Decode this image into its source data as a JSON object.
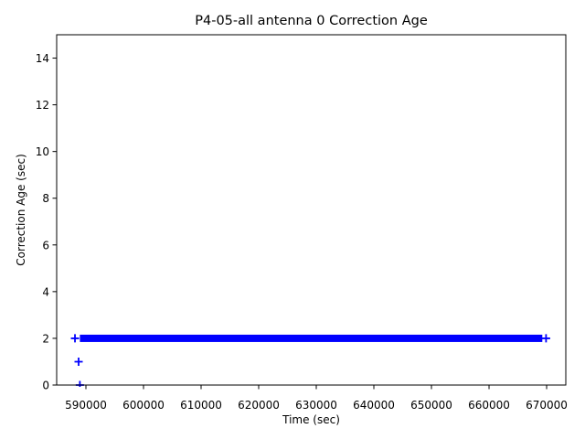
{
  "chart_data": {
    "type": "scatter",
    "title": "P4-05-all antenna 0 Correction Age",
    "xlabel": "Time (sec)",
    "ylabel": "Correction Age (sec)",
    "marker": "+",
    "marker_color": "#0000ff",
    "axis_color": "#000000",
    "background_color": "#ffffff",
    "grid": false,
    "legend": "none",
    "xlim": [
      584920,
      673330
    ],
    "ylim": [
      0,
      15
    ],
    "xticks": [
      590000,
      600000,
      610000,
      620000,
      630000,
      640000,
      650000,
      660000,
      670000
    ],
    "yticks": [
      0,
      2,
      4,
      6,
      8,
      10,
      12,
      14
    ],
    "series": [
      {
        "name": "antenna 0 correction age",
        "dense_band": {
          "y": 2,
          "t_start": 588950,
          "t_end": 669250,
          "note": "continuous run of overlapping + markers at correction age 2, rendered as a solid bar"
        },
        "isolated_points": [
          {
            "t": 588100,
            "y": 2
          },
          {
            "t": 669900,
            "y": 2
          },
          {
            "t": 588730,
            "y": 1
          },
          {
            "t": 588950,
            "y": 0
          }
        ]
      }
    ]
  }
}
